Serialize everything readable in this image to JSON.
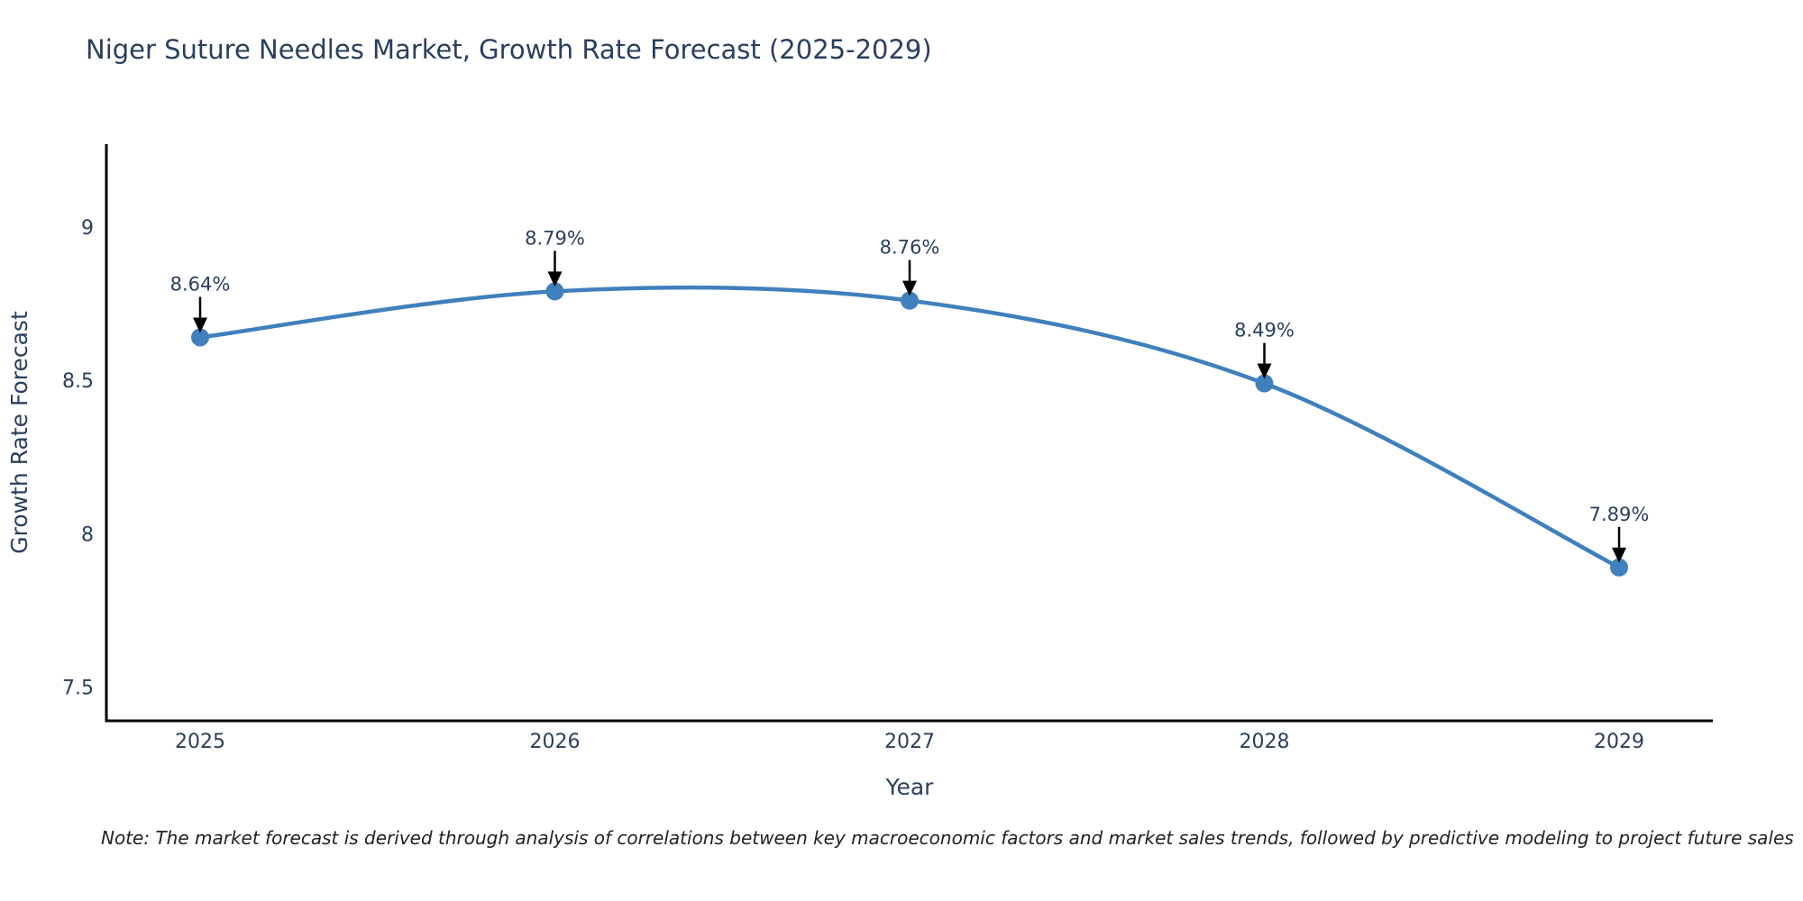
{
  "title": "Niger Suture Needles Market, Growth Rate Forecast (2025-2029)",
  "note": "Note: The market forecast is derived through analysis of correlations between key macroeconomic factors and market sales trends, followed by predictive modeling to project future sales",
  "chart_data": {
    "type": "line",
    "title": "Niger Suture Needles Market, Growth Rate Forecast (2025-2029)",
    "xlabel": "Year",
    "ylabel": "Growth Rate Forecast",
    "x": [
      2025,
      2026,
      2027,
      2028,
      2029
    ],
    "xtick_labels": [
      "2025",
      "2026",
      "2027",
      "2028",
      "2029"
    ],
    "series": [
      {
        "name": "Growth Rate Forecast",
        "values": [
          8.64,
          8.79,
          8.76,
          8.49,
          7.89
        ]
      }
    ],
    "point_labels": [
      "8.64%",
      "8.79%",
      "8.76%",
      "8.49%",
      "7.89%"
    ],
    "yticks": [
      7.5,
      8,
      8.5,
      9
    ],
    "ytick_labels": [
      "7.5",
      "8",
      "8.5",
      "9"
    ],
    "ylim": [
      7.39,
      9.27
    ],
    "grid": false,
    "legend": "none",
    "line_shape": "spline",
    "colors": {
      "line": "#3f80bd",
      "marker": "#3f80bd",
      "axis": "#000000",
      "text": "#2a3f5f",
      "annotation_text": "#2a3f5f",
      "annotation_arrow": "#000000",
      "background": "#ffffff"
    }
  }
}
